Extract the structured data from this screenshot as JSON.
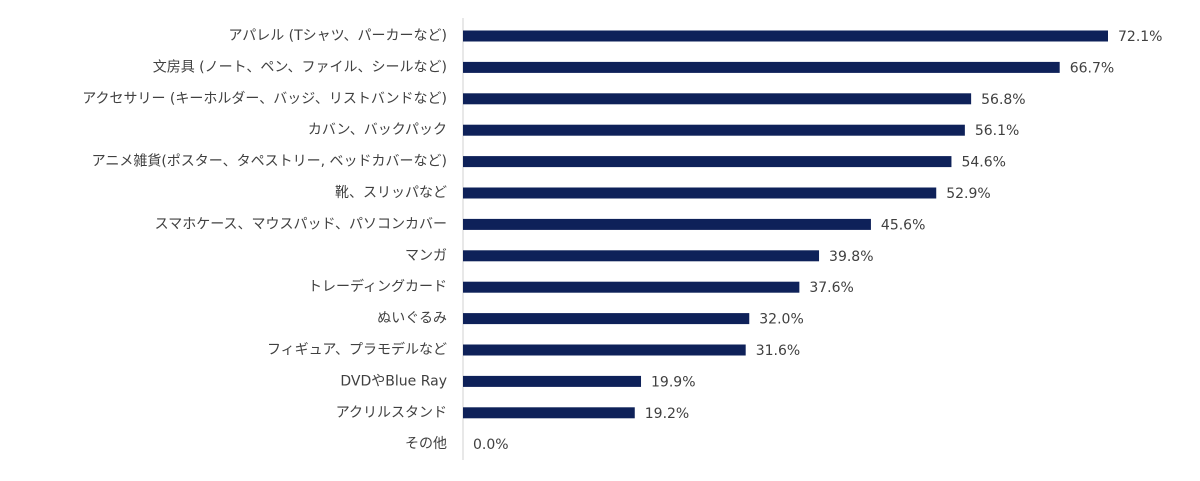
{
  "chart_data": {
    "type": "hbar",
    "color": "#0e2159",
    "categories": [
      "アパレル (Tシャツ、パーカーなど)",
      "文房具 (ノート、ペン、ファイル、シールなど)",
      "アクセサリー (キーホルダー、バッジ、リストバンドなど)",
      "カバン、バックパック",
      "アニメ雑貨(ポスター、タペストリー, ベッドカバーなど)",
      "靴、スリッパなど",
      "スマホケース、マウスパッド、パソコンカバー",
      "マンガ",
      "トレーディングカード",
      "ぬいぐるみ",
      "フィギュア、プラモデルなど",
      "DVDやBlue Ray",
      "アクリルスタンド",
      "その他"
    ],
    "values": [
      72.1,
      66.7,
      56.8,
      56.1,
      54.6,
      52.9,
      45.6,
      39.8,
      37.6,
      32.0,
      31.6,
      19.9,
      19.2,
      0.0
    ],
    "value_labels": [
      "72.1%",
      "66.7%",
      "56.8%",
      "56.1%",
      "54.6%",
      "52.9%",
      "45.6%",
      "39.8%",
      "37.6%",
      "32.0%",
      "31.6%",
      "19.9%",
      "19.2%",
      "0.0%"
    ]
  }
}
